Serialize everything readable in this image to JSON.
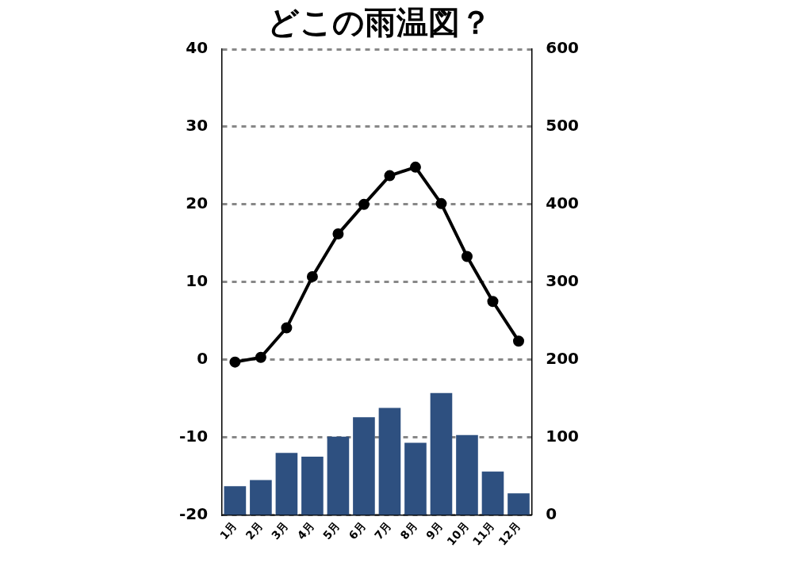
{
  "chart_data": {
    "type": "bar",
    "title": "どこの雨温図？",
    "categories": [
      "1月",
      "2月",
      "3月",
      "4月",
      "5月",
      "6月",
      "7月",
      "8月",
      "9月",
      "10月",
      "11月",
      "12月"
    ],
    "series": [
      {
        "axis": "y2",
        "color": "#2e5080",
        "values": [
          37,
          45,
          80,
          75,
          101,
          126,
          138,
          93,
          157,
          103,
          56,
          28
        ]
      },
      {
        "type": "line",
        "axis": "y",
        "color": "#000000",
        "marker": "circle",
        "line_style": "solid",
        "values": [
          -0.3,
          0.3,
          4.1,
          10.7,
          16.2,
          20.0,
          23.7,
          24.8,
          20.1,
          13.3,
          7.5,
          2.4
        ]
      }
    ],
    "ylim": [
      -20,
      40
    ],
    "yticks": [
      -20,
      -10,
      0,
      10,
      20,
      30,
      40
    ],
    "y2lim": [
      0,
      600
    ],
    "y2ticks": [
      0,
      100,
      200,
      300,
      400,
      500,
      600
    ],
    "grid": "y",
    "legend": false
  }
}
